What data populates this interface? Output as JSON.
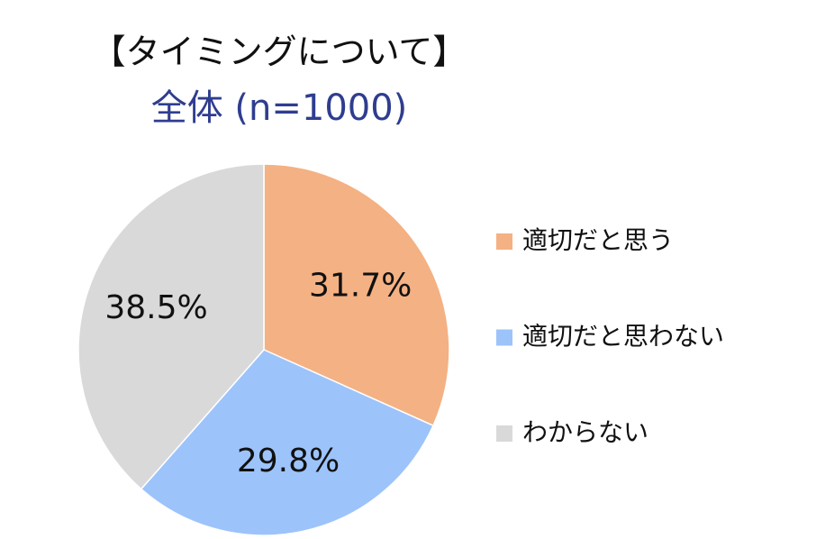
{
  "chart_data": {
    "type": "pie",
    "title": "【タイミングについて】",
    "subtitle": "全体 (n=1000)",
    "categories": [
      "適切だと思う",
      "適切だと思わない",
      "わからない"
    ],
    "values": [
      31.7,
      29.8,
      38.5
    ],
    "value_labels": [
      "31.7%",
      "29.8%",
      "38.5%"
    ],
    "colors": [
      "#f4b183",
      "#9dc3fb",
      "#d9d9d9"
    ],
    "legend": "right"
  }
}
